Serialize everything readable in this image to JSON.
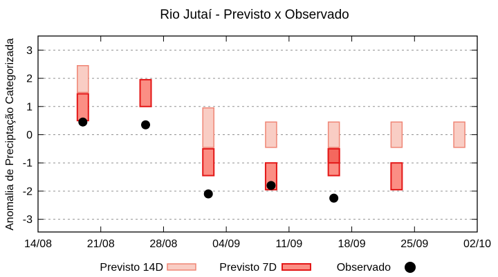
{
  "chart_data": {
    "type": "bar",
    "subtype": "range-boxes-with-scatter",
    "title": "Rio Jutaí - Previsto x Observado",
    "xlabel": "",
    "ylabel": "Anomalia de Preciptação Categorizada",
    "ylim": [
      -3.45,
      3.5
    ],
    "yticks": [
      3,
      2,
      1,
      0,
      -1,
      -2,
      -3
    ],
    "ytick_labels": [
      "3",
      "2",
      "1",
      "0",
      "-1",
      "-2",
      "-3"
    ],
    "grid": "horizontal-dashed",
    "xlim_days": [
      0,
      49
    ],
    "xticks_days": [
      0,
      7,
      14,
      21,
      28,
      35,
      42,
      49
    ],
    "xtick_labels": [
      "14/08",
      "21/08",
      "28/08",
      "04/09",
      "11/09",
      "18/09",
      "25/09",
      "02/10"
    ],
    "legend": [
      {
        "label": "Previsto 14D",
        "marker": "light-pink-box"
      },
      {
        "label": "Previsto 7D",
        "marker": "red-box"
      },
      {
        "label": "Observado",
        "marker": "black-dot"
      }
    ],
    "colors": {
      "p14_fill": "#f9cdc4",
      "p14_border": "#ef8575",
      "p7_fill": "#fb8e84",
      "p7_border": "#e31717",
      "p7_overlap_fill": "#f4685e",
      "observado": "#000000",
      "grid": "#909090",
      "axis": "#000000",
      "background": "#ffffff"
    },
    "clusters": [
      {
        "date": "19/08",
        "day": 5,
        "previsto_14d": [
          1.5,
          2.45
        ],
        "previsto_7d": [
          0.5,
          1.45
        ],
        "previsto_7d_overlap": null,
        "observado": 0.45
      },
      {
        "date": "26/08",
        "day": 12,
        "previsto_14d": null,
        "previsto_7d": [
          1.0,
          1.95
        ],
        "previsto_7d_overlap": null,
        "observado": 0.35
      },
      {
        "date": "02/09",
        "day": 19,
        "previsto_14d": [
          -0.45,
          0.95
        ],
        "previsto_7d": [
          -1.45,
          -0.5
        ],
        "previsto_7d_overlap": null,
        "observado": -2.1
      },
      {
        "date": "09/09",
        "day": 26,
        "previsto_14d": [
          -0.45,
          0.45
        ],
        "previsto_7d": [
          -1.95,
          -1.0
        ],
        "previsto_7d_overlap": null,
        "observado": -1.8
      },
      {
        "date": "16/09",
        "day": 33,
        "previsto_14d": [
          -0.45,
          0.45
        ],
        "previsto_7d": [
          -1.45,
          -0.5
        ],
        "previsto_7d_overlap": [
          -1.0,
          -0.5
        ],
        "observado": -2.25
      },
      {
        "date": "23/09",
        "day": 40,
        "previsto_14d": [
          -0.45,
          0.45
        ],
        "previsto_7d": [
          -1.95,
          -1.0
        ],
        "previsto_7d_overlap": null,
        "observado": null
      },
      {
        "date": "30/09",
        "day": 47,
        "previsto_14d": [
          -0.45,
          0.45
        ],
        "previsto_7d": null,
        "previsto_7d_overlap": null,
        "observado": null
      }
    ]
  }
}
